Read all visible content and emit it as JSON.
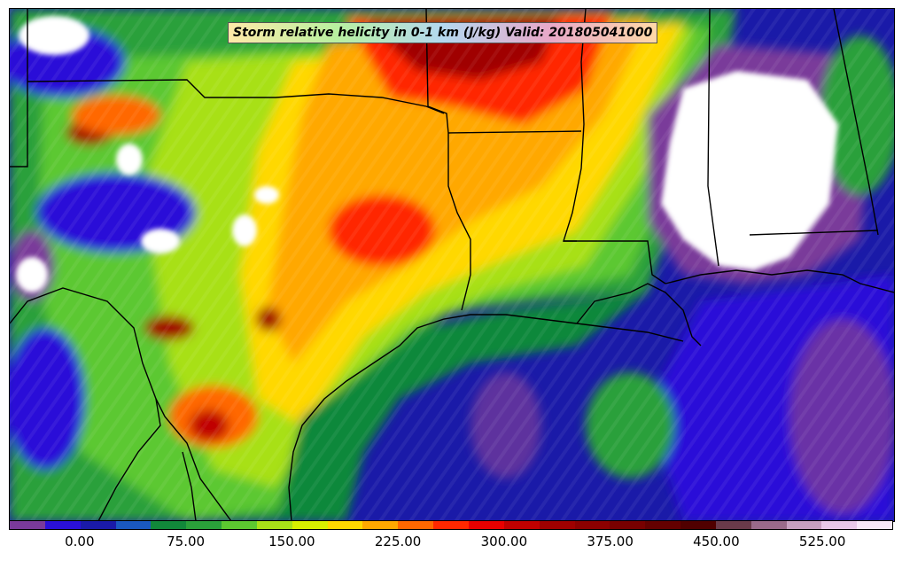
{
  "title": "Storm relative helicity in 0-1 km (J/kg) Valid: 201805041000",
  "colorbar": {
    "ticks": [
      "0.00",
      "75.00",
      "150.00",
      "225.00",
      "300.00",
      "375.00",
      "450.00",
      "525.00"
    ],
    "tick_values": [
      0,
      75,
      150,
      225,
      300,
      375,
      450,
      525
    ],
    "range": [
      -50,
      575
    ],
    "colors": [
      "#7a3a9a",
      "#2a10d8",
      "#1a1aa8",
      "#1a58c0",
      "#11883a",
      "#2aa03a",
      "#5cc830",
      "#a8e018",
      "#d8f000",
      "#ffd800",
      "#ffa800",
      "#ff6800",
      "#ff2800",
      "#e80000",
      "#c00000",
      "#a00000",
      "#8c0000",
      "#780000",
      "#640000",
      "#500000",
      "#6a3a4a",
      "#9a6a8a",
      "#c8a0c0",
      "#e8c8e8",
      "#f8e8f8"
    ]
  },
  "chart_data": {
    "type": "heatmap",
    "title": "Storm relative helicity in 0-1 km (J/kg) Valid: 201805041000",
    "colorbar_ticks": [
      0,
      75,
      150,
      225,
      300,
      375,
      450,
      525
    ],
    "colorbar_range": [
      -50,
      575
    ],
    "units": "J/kg"
  }
}
